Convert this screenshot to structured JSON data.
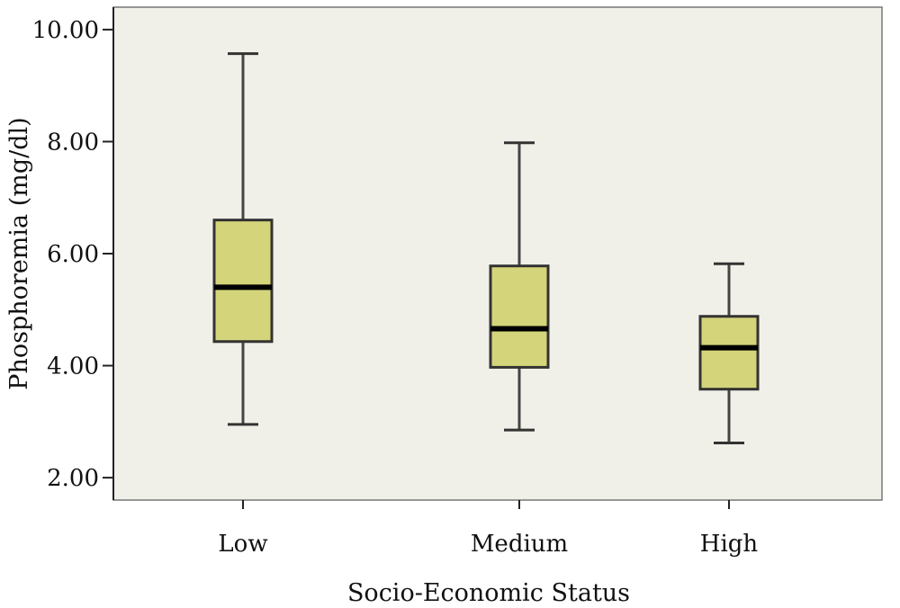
{
  "chart_data": {
    "type": "boxplot",
    "xlabel": "Socio-Economic Status",
    "ylabel": "Phosphoremia (mg/dl)",
    "ylim": [
      1.6,
      10.4
    ],
    "y_ticks": [
      "2.00",
      "4.00",
      "6.00",
      "8.00",
      "10.00"
    ],
    "categories": [
      "Low",
      "Medium",
      "High"
    ],
    "boxes": [
      {
        "category": "Low",
        "min": 2.95,
        "q1": 4.43,
        "median": 5.4,
        "q3": 6.6,
        "max": 9.57
      },
      {
        "category": "Medium",
        "min": 2.85,
        "q1": 3.97,
        "median": 4.66,
        "q3": 5.78,
        "max": 7.98
      },
      {
        "category": "High",
        "min": 2.62,
        "q1": 3.58,
        "median": 4.32,
        "q3": 4.88,
        "max": 5.82
      }
    ],
    "grid": false,
    "colors": {
      "plot_background": "#f0f0e8",
      "box_fill": "#d4d47a",
      "box_stroke": "#333333",
      "median": "#000000",
      "whisker": "#444444"
    }
  }
}
